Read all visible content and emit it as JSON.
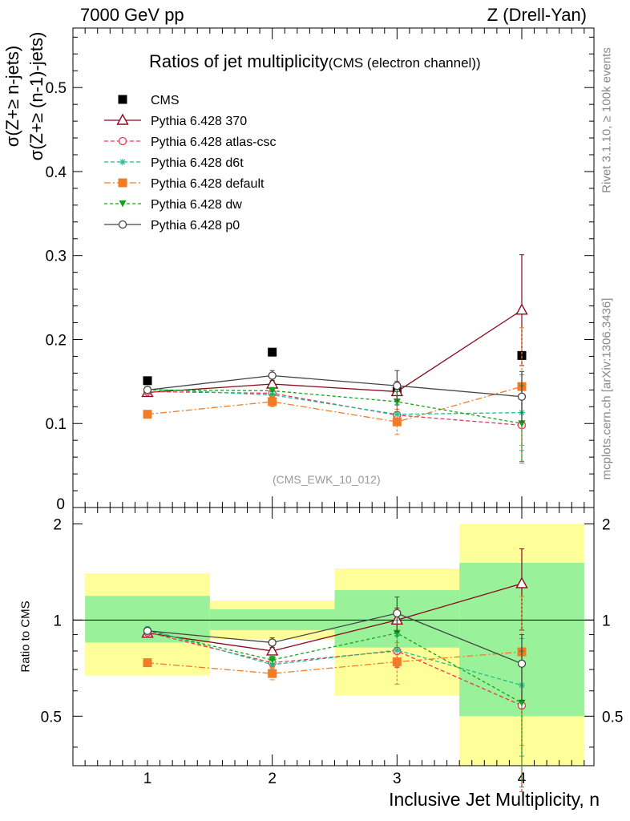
{
  "header": {
    "left": "7000 GeV pp",
    "right": "Z (Drell-Yan)"
  },
  "side": {
    "rivet": "Rivet 3.1.10, ≥ 100k events",
    "mcplots": "mcplots.cern.ch [arXiv:1306.3436]"
  },
  "chart_data": [
    {
      "type": "line",
      "title": "Ratios of jet multiplicity",
      "subtitle": "(CMS (electron channel))",
      "ylabel_num": "σ(Z+≥ n-jets)",
      "ylabel_den": "σ(Z+≥ (n-1)-jets)",
      "watermark": "(CMS_EWK_10_012)",
      "ylim": [
        0,
        0.58
      ],
      "yticks": [
        0.1,
        0.2,
        0.3,
        0.4,
        0.5
      ],
      "ytick_labels": [
        "0.1",
        "0.2",
        "0.3",
        "0.4",
        "0.5"
      ],
      "bottom_tick_label": "0",
      "x": [
        1,
        2,
        3,
        4
      ],
      "legend_position": "top-left",
      "series": [
        {
          "name": "CMS",
          "values": [
            0.151,
            0.185,
            0.138,
            0.181
          ],
          "color": "#000000",
          "marker": "square",
          "dash": "none"
        },
        {
          "name": "Pythia 6.428 370",
          "values": [
            0.137,
            0.147,
            0.138,
            0.235
          ],
          "err": [
            0.003,
            0.004,
            0.012,
            0.066
          ],
          "color": "#8b0a1e",
          "marker": "triangle-open",
          "dash": "solid"
        },
        {
          "name": "Pythia 6.428 atlas-csc",
          "values": [
            0.138,
            0.136,
            0.11,
            0.098
          ],
          "err": [
            0.003,
            0.004,
            0.012,
            0.045
          ],
          "color": "#e8365a",
          "marker": "circle-open",
          "dash": "5,3"
        },
        {
          "name": "Pythia 6.428 d6t",
          "values": [
            0.141,
            0.134,
            0.111,
            0.113
          ],
          "err": [
            0.003,
            0.004,
            0.012,
            0.045
          ],
          "color": "#1fbf8c",
          "marker": "star",
          "dash": "5,3"
        },
        {
          "name": "Pythia 6.428 default",
          "values": [
            0.111,
            0.126,
            0.102,
            0.144
          ],
          "err": [
            0.003,
            0.006,
            0.015,
            0.07
          ],
          "color": "#f07c28",
          "marker": "square",
          "dash": "8,3,2,3"
        },
        {
          "name": "Pythia 6.428 dw",
          "values": [
            0.14,
            0.139,
            0.126,
            0.1
          ],
          "err": [
            0.003,
            0.004,
            0.012,
            0.045
          ],
          "color": "#17a317",
          "marker": "triangle-down",
          "dash": "4,3"
        },
        {
          "name": "Pythia 6.428 p0",
          "values": [
            0.14,
            0.157,
            0.145,
            0.132
          ],
          "err": [
            0.003,
            0.006,
            0.018,
            0.03
          ],
          "color": "#444444",
          "marker": "circle-open",
          "dash": "solid"
        }
      ]
    },
    {
      "type": "line",
      "ylabel": "Ratio to CMS",
      "xlabel": "Inclusive Jet Multiplicity, n",
      "ylim": [
        0.35,
        2.25
      ],
      "ytick_labels": [
        "0.5",
        "1",
        "2"
      ],
      "ytick_values": [
        0.5,
        1,
        2
      ],
      "xtick_labels": [
        "1",
        "2",
        "3",
        "4"
      ],
      "reference_line": 1,
      "bands": [
        {
          "xmin": 0.5,
          "xmax": 1.5,
          "stat": [
            0.85,
            1.19
          ],
          "total": [
            0.67,
            1.4
          ]
        },
        {
          "xmin": 1.5,
          "xmax": 2.5,
          "stat": [
            0.93,
            1.08
          ],
          "total": [
            0.87,
            1.15
          ]
        },
        {
          "xmin": 2.5,
          "xmax": 3.5,
          "stat": [
            0.82,
            1.24
          ],
          "total": [
            0.58,
            1.45
          ]
        },
        {
          "xmin": 3.5,
          "xmax": 4.5,
          "stat": [
            0.5,
            1.51
          ],
          "total": [
            0.3,
            2.0
          ]
        }
      ],
      "x": [
        1,
        2,
        3,
        4
      ],
      "series": [
        {
          "name": "Pythia 6.428 370",
          "values": [
            0.91,
            0.8,
            1.0,
            1.3
          ],
          "err": [
            0.02,
            0.02,
            0.09,
            0.37
          ],
          "color": "#8b0a1e",
          "marker": "triangle-open",
          "dash": "solid"
        },
        {
          "name": "Pythia 6.428 atlas-csc",
          "values": [
            0.915,
            0.735,
            0.8,
            0.54
          ],
          "err": [
            0.02,
            0.02,
            0.09,
            0.25
          ],
          "color": "#e8365a",
          "marker": "circle-open",
          "dash": "5,3"
        },
        {
          "name": "Pythia 6.428 d6t",
          "values": [
            0.935,
            0.725,
            0.805,
            0.625
          ],
          "err": [
            0.02,
            0.02,
            0.09,
            0.25
          ],
          "color": "#1fbf8c",
          "marker": "star",
          "dash": "5,3"
        },
        {
          "name": "Pythia 6.428 default",
          "values": [
            0.735,
            0.68,
            0.74,
            0.795
          ],
          "err": [
            0.02,
            0.03,
            0.11,
            0.39
          ],
          "color": "#f07c28",
          "marker": "square",
          "dash": "8,3,2,3"
        },
        {
          "name": "Pythia 6.428 dw",
          "values": [
            0.925,
            0.75,
            0.91,
            0.55
          ],
          "err": [
            0.02,
            0.02,
            0.09,
            0.25
          ],
          "color": "#17a317",
          "marker": "triangle-down",
          "dash": "4,3"
        },
        {
          "name": "Pythia 6.428 p0",
          "values": [
            0.925,
            0.85,
            1.05,
            0.73
          ],
          "err": [
            0.02,
            0.03,
            0.13,
            0.17
          ],
          "color": "#444444",
          "marker": "circle-open",
          "dash": "solid"
        }
      ]
    }
  ]
}
